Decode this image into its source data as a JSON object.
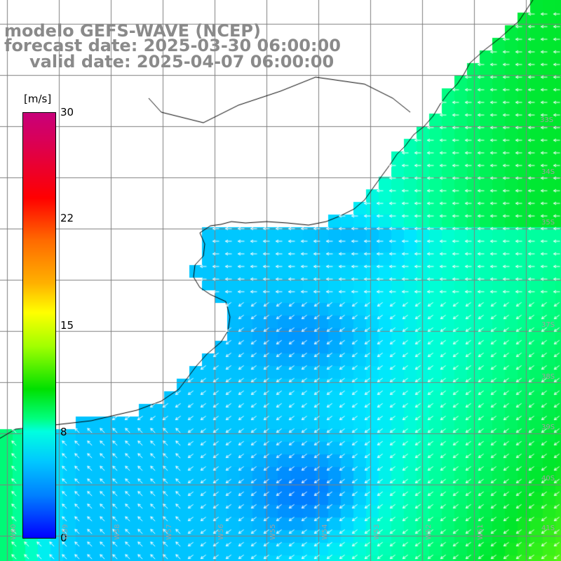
{
  "title": {
    "line1": "modelo GEFS-WAVE (NCEP)",
    "line2": "forecast date: 2025-03-30 06:00:00",
    "line3": "valid date: 2025-04-07 06:00:00"
  },
  "colorbar": {
    "unit": "[m/s]",
    "ticks": [
      "30",
      "22",
      "15",
      "8",
      "0"
    ],
    "colors": [
      "#c8007a",
      "#ff0000",
      "#ff6a00",
      "#ffff00",
      "#00e000",
      "#00ffe0",
      "#0080ff",
      "#0000ff"
    ]
  },
  "grid": {
    "lat_labels": [
      "33S",
      "34S",
      "35S",
      "37S",
      "38S",
      "39S",
      "40S",
      "41S"
    ],
    "lon_labels": [
      "W60",
      "W59",
      "W58",
      "W57",
      "W56",
      "W55",
      "W54",
      "W53",
      "W52",
      "W51"
    ]
  },
  "colors": {
    "land": "#ffffff",
    "coast": "#000000",
    "gridline": "#808080",
    "arrow": "#ffffff"
  }
}
